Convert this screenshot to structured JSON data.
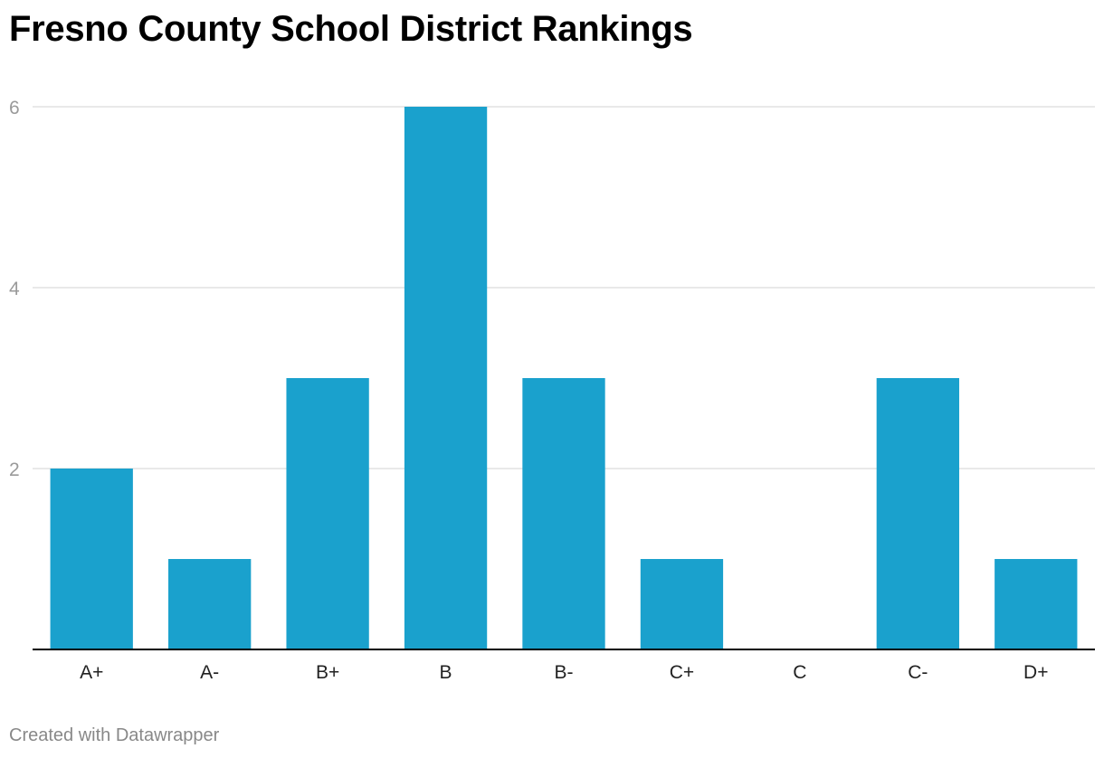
{
  "title": "Fresno County School District Rankings",
  "footer": "Created with Datawrapper",
  "colors": {
    "bar": "#1aa1cd",
    "grid": "#e2e2e2",
    "axis": "#000000"
  },
  "chart_data": {
    "type": "bar",
    "title": "Fresno County School District Rankings",
    "categories": [
      "A+",
      "A-",
      "B+",
      "B",
      "B-",
      "C+",
      "C",
      "C-",
      "D+"
    ],
    "values": [
      2,
      1,
      3,
      6,
      3,
      1,
      0,
      3,
      1
    ],
    "yticks": [
      2,
      4,
      6
    ],
    "ylim": [
      0,
      6
    ],
    "xlabel": "",
    "ylabel": "",
    "grid": true,
    "legend": "none"
  }
}
